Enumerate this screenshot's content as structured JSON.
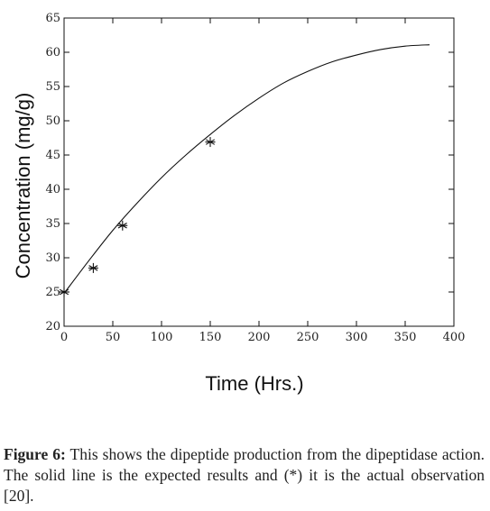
{
  "chart_data": {
    "type": "line",
    "xlabel": "Time (Hrs.)",
    "ylabel": "Concentration  (mg/g)",
    "xlim": [
      0,
      400
    ],
    "ylim": [
      20,
      65
    ],
    "x_ticks": [
      0,
      50,
      100,
      150,
      200,
      250,
      300,
      350,
      400
    ],
    "y_ticks": [
      20,
      25,
      30,
      35,
      40,
      45,
      50,
      55,
      60,
      65
    ],
    "grid": false,
    "legend": "none",
    "series": [
      {
        "kind": "line",
        "style": "solid",
        "x": [
          0,
          25,
          50,
          75,
          100,
          125,
          150,
          175,
          200,
          225,
          250,
          275,
          300,
          325,
          350,
          375
        ],
        "y": [
          24.8,
          29.5,
          34.0,
          38.0,
          41.7,
          45.0,
          48.0,
          50.8,
          53.3,
          55.5,
          57.2,
          58.6,
          59.6,
          60.4,
          60.9,
          61.1
        ]
      },
      {
        "kind": "scatter",
        "marker": "*",
        "x": [
          0,
          30,
          60,
          150
        ],
        "y": [
          25,
          28.5,
          34.7,
          46.9
        ]
      }
    ]
  },
  "caption": {
    "label": "Figure 6:",
    "text": " This shows the dipeptide production from the dipeptidase action. The solid line is the expected results and (*) it is the actual observation [20]."
  }
}
